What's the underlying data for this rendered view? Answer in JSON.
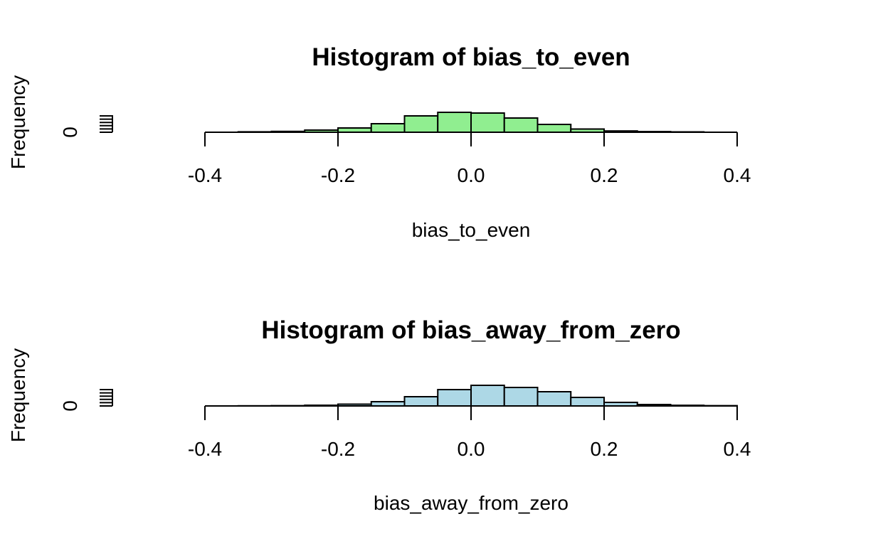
{
  "chart_data": [
    {
      "type": "bar",
      "title": "Histogram of bias_to_even",
      "xlabel": "bias_to_even",
      "ylabel": "Frequency",
      "xlim": [
        -0.4,
        0.4
      ],
      "x_ticks": [
        "-0.4",
        "-0.2",
        "0.0",
        "0.2",
        "0.4"
      ],
      "y_ticks": [
        "0"
      ],
      "bin_width": 0.05,
      "bins": [
        {
          "x0": -0.35,
          "x1": -0.3,
          "value": 0.6
        },
        {
          "x0": -0.3,
          "x1": -0.25,
          "value": 1.2
        },
        {
          "x0": -0.25,
          "x1": -0.2,
          "value": 3.0
        },
        {
          "x0": -0.2,
          "x1": -0.15,
          "value": 6.0
        },
        {
          "x0": -0.15,
          "x1": -0.1,
          "value": 12.0
        },
        {
          "x0": -0.1,
          "x1": -0.05,
          "value": 23.0
        },
        {
          "x0": -0.05,
          "x1": 0.0,
          "value": 28.0
        },
        {
          "x0": 0.0,
          "x1": 0.05,
          "value": 27.0
        },
        {
          "x0": 0.05,
          "x1": 0.1,
          "value": 20.0
        },
        {
          "x0": 0.1,
          "x1": 0.15,
          "value": 11.0
        },
        {
          "x0": 0.15,
          "x1": 0.2,
          "value": 4.5
        },
        {
          "x0": 0.2,
          "x1": 0.25,
          "value": 1.8
        },
        {
          "x0": 0.25,
          "x1": 0.3,
          "value": 0.9
        },
        {
          "x0": 0.3,
          "x1": 0.35,
          "value": 0.5
        }
      ],
      "fill_color": "#90ee90",
      "border_color": "#000000"
    },
    {
      "type": "bar",
      "title": "Histogram of bias_away_from_zero",
      "xlabel": "bias_away_from_zero",
      "ylabel": "Frequency",
      "xlim": [
        -0.4,
        0.4
      ],
      "x_ticks": [
        "-0.4",
        "-0.2",
        "0.0",
        "0.2",
        "0.4"
      ],
      "y_ticks": [
        "0"
      ],
      "bin_width": 0.05,
      "bins": [
        {
          "x0": -0.35,
          "x1": -0.3,
          "value": 0.2
        },
        {
          "x0": -0.3,
          "x1": -0.25,
          "value": 0.4
        },
        {
          "x0": -0.25,
          "x1": -0.2,
          "value": 1.0
        },
        {
          "x0": -0.2,
          "x1": -0.15,
          "value": 2.5
        },
        {
          "x0": -0.15,
          "x1": -0.1,
          "value": 6.0
        },
        {
          "x0": -0.1,
          "x1": -0.05,
          "value": 13.0
        },
        {
          "x0": -0.05,
          "x1": 0.0,
          "value": 23.0
        },
        {
          "x0": 0.0,
          "x1": 0.05,
          "value": 29.0
        },
        {
          "x0": 0.05,
          "x1": 0.1,
          "value": 26.0
        },
        {
          "x0": 0.1,
          "x1": 0.15,
          "value": 20.0
        },
        {
          "x0": 0.15,
          "x1": 0.2,
          "value": 12.0
        },
        {
          "x0": 0.2,
          "x1": 0.25,
          "value": 5.0
        },
        {
          "x0": 0.25,
          "x1": 0.3,
          "value": 2.0
        },
        {
          "x0": 0.3,
          "x1": 0.35,
          "value": 0.9
        },
        {
          "x0": 0.35,
          "x1": 0.4,
          "value": 0.4
        }
      ],
      "fill_color": "#add8e6",
      "border_color": "#000000"
    }
  ]
}
